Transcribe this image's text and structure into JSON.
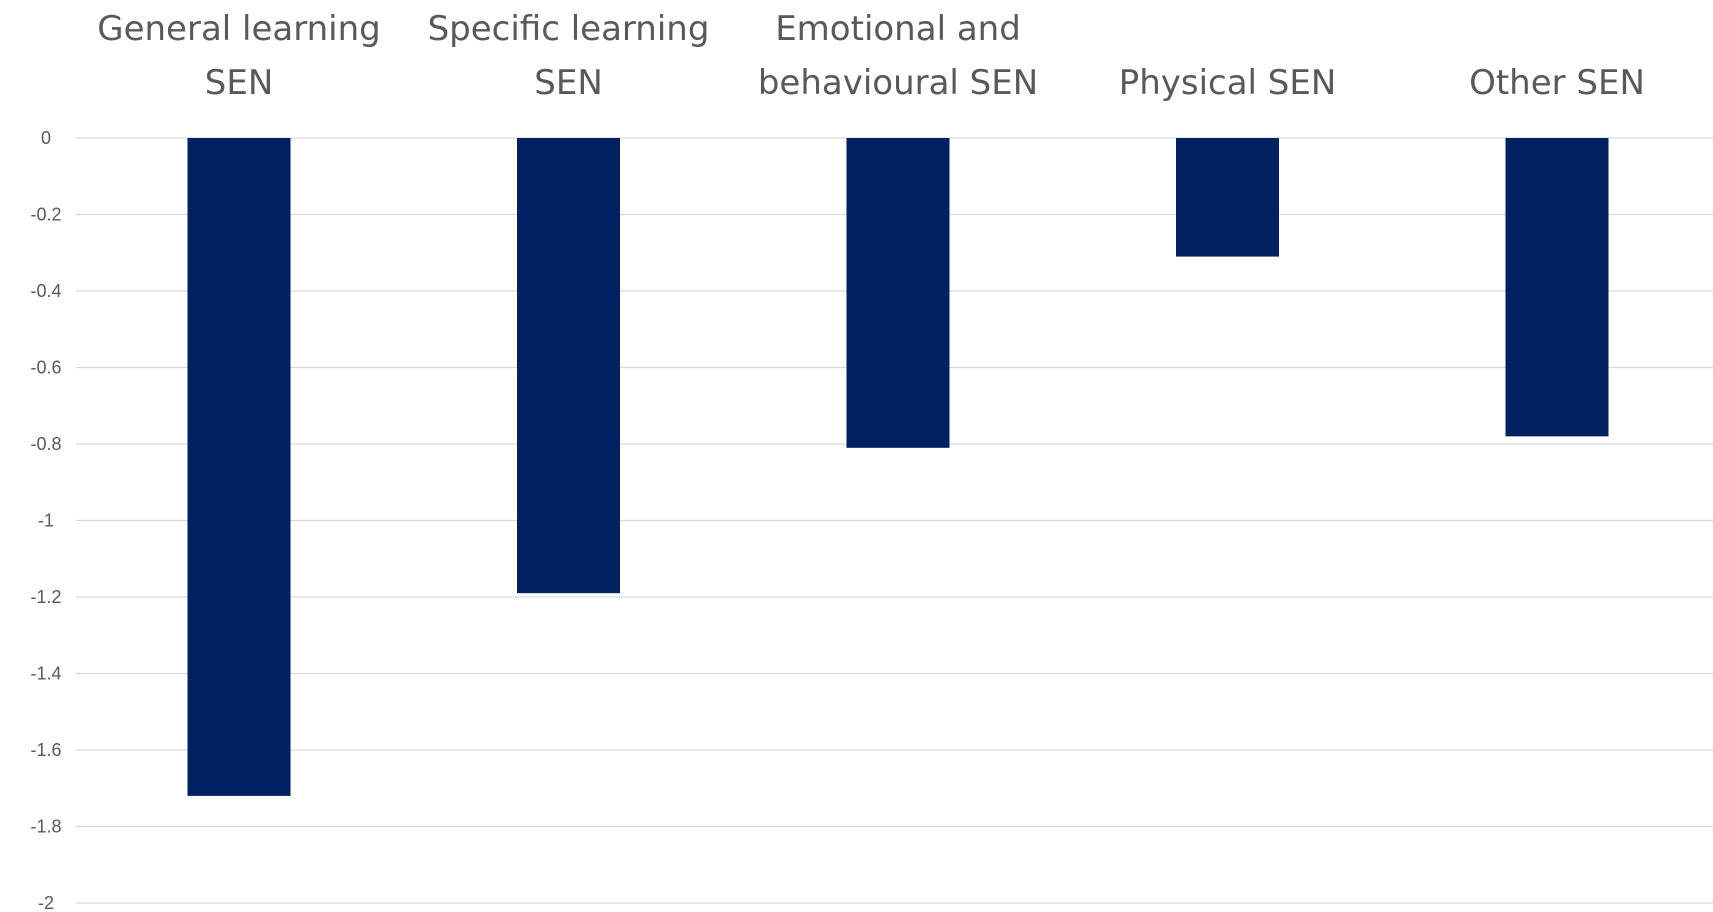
{
  "chart_data": {
    "type": "bar",
    "title": "",
    "xlabel": "",
    "ylabel": "",
    "categories": [
      [
        "General learning",
        "SEN"
      ],
      [
        "Specific learning",
        "SEN"
      ],
      [
        "Emotional and",
        "behavioural SEN"
      ],
      [
        "Physical SEN"
      ],
      [
        "Other SEN"
      ]
    ],
    "values": [
      -1.72,
      -1.19,
      -0.81,
      -0.31,
      -0.78
    ],
    "ylim": [
      -2,
      0
    ],
    "yticks": [
      "0",
      "-0.2",
      "-0.4",
      "-0.6",
      "-0.8",
      "-1",
      "-1.2",
      "-1.4",
      "-1.6",
      "-1.8",
      "-2"
    ],
    "category_axis_position": "top",
    "grid": true,
    "legend": "none",
    "bar_color": "#002060",
    "grid_color": "#d9d9d9",
    "text_color": "#595959"
  }
}
